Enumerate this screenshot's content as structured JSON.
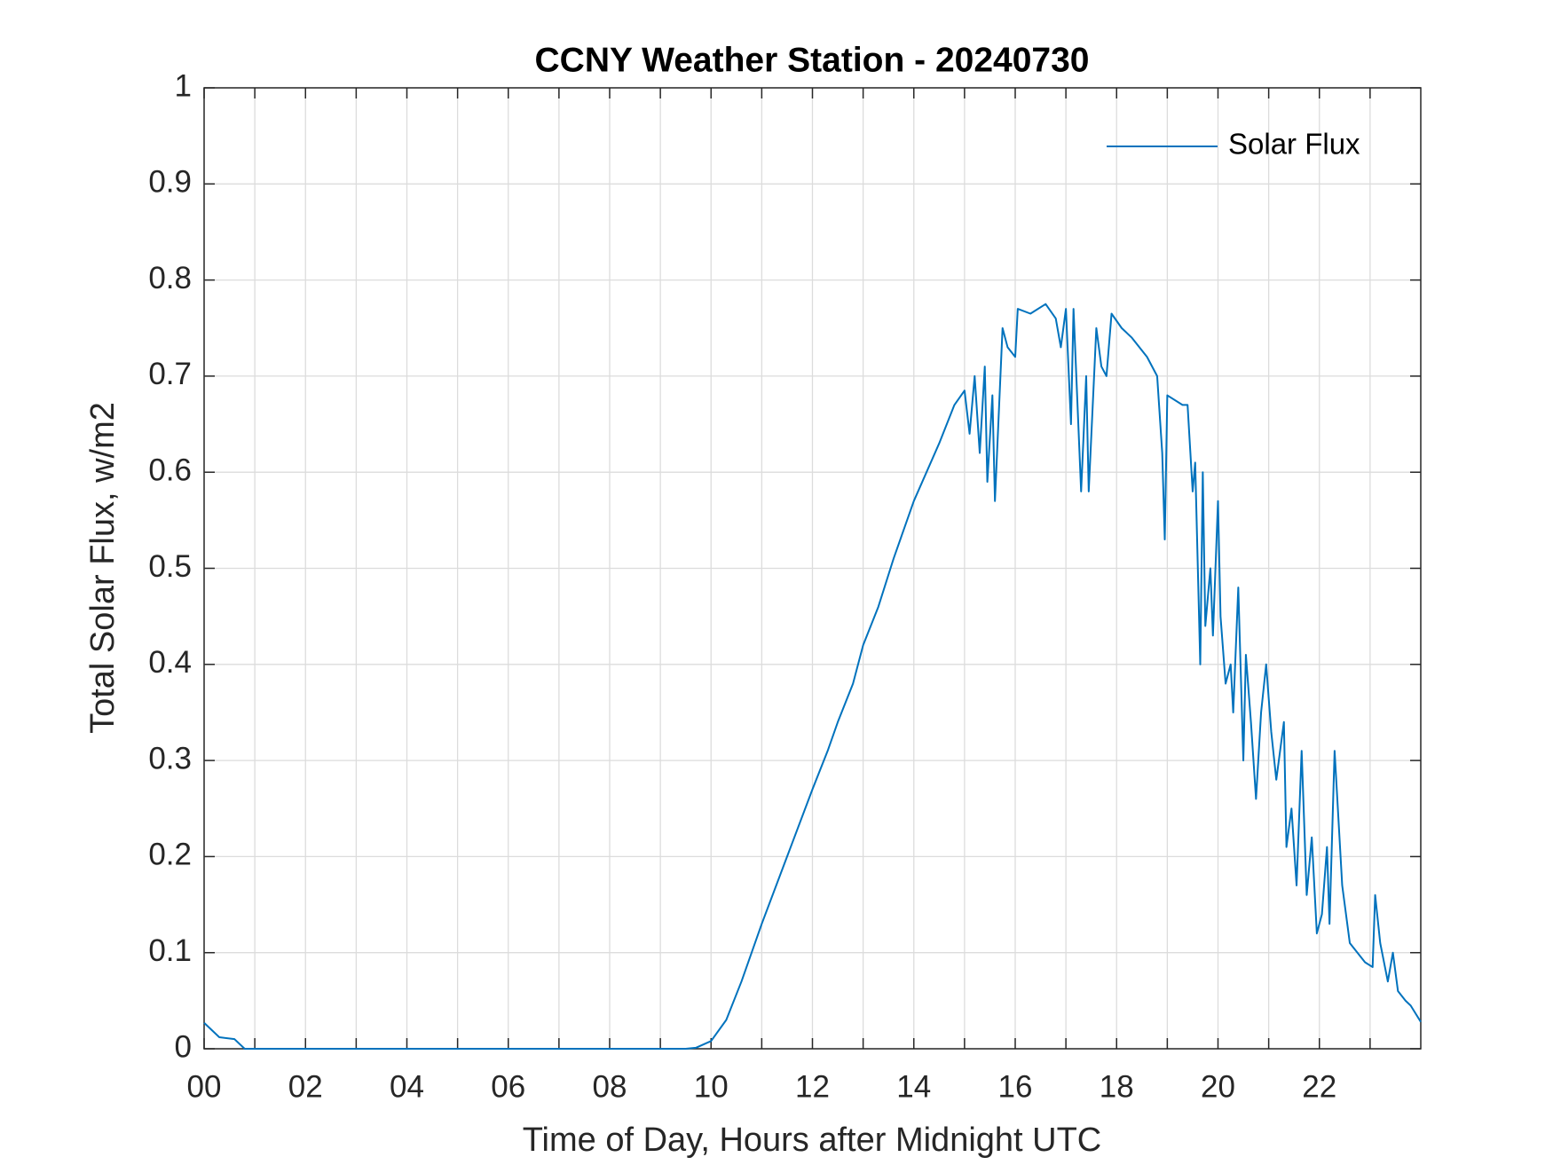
{
  "chart_data": {
    "type": "line",
    "title": "CCNY Weather Station - 20240730",
    "x_label": "Time of Day, Hours after Midnight UTC",
    "y_label": "Total Solar Flux, w/m2",
    "xlim": [
      0,
      24
    ],
    "ylim": [
      0,
      1
    ],
    "xticks": [
      {
        "value": 0,
        "label": "00"
      },
      {
        "value": 2,
        "label": "02"
      },
      {
        "value": 4,
        "label": "04"
      },
      {
        "value": 6,
        "label": "06"
      },
      {
        "value": 8,
        "label": "08"
      },
      10,
      12,
      14,
      16,
      18,
      20,
      22
    ],
    "xminorticks": [
      1,
      3,
      5,
      7,
      9,
      11,
      13,
      15,
      17,
      19,
      21,
      23
    ],
    "yticks": [
      0,
      0.1,
      0.2,
      0.3,
      0.4,
      0.5,
      0.6,
      0.7,
      0.8,
      0.9,
      1
    ],
    "grid": true,
    "legend": "northeast",
    "x": [
      0,
      0.3,
      0.6,
      0.8,
      1,
      9.5,
      9.7,
      10,
      10.3,
      10.6,
      11,
      11.5,
      12,
      12.3,
      12.5,
      12.8,
      13,
      13.3,
      13.6,
      14,
      14.5,
      14.8,
      15.0,
      15.1,
      15.2,
      15.3,
      15.4,
      15.45,
      15.55,
      15.6,
      15.75,
      15.85,
      16.0,
      16.05,
      16.3,
      16.6,
      16.8,
      16.9,
      17.0,
      17.1,
      17.15,
      17.3,
      17.4,
      17.45,
      17.6,
      17.7,
      17.8,
      17.9,
      18.1,
      18.3,
      18.6,
      18.8,
      18.9,
      18.95,
      19.0,
      19.3,
      19.4,
      19.5,
      19.55,
      19.65,
      19.7,
      19.75,
      19.85,
      19.9,
      20.0,
      20.05,
      20.15,
      20.25,
      20.3,
      20.4,
      20.5,
      20.55,
      20.65,
      20.75,
      20.85,
      20.95,
      21.05,
      21.15,
      21.3,
      21.35,
      21.45,
      21.55,
      21.65,
      21.75,
      21.85,
      21.95,
      22.05,
      22.15,
      22.2,
      22.3,
      22.45,
      22.6,
      22.9,
      23.05,
      23.1,
      23.2,
      23.35,
      23.45,
      23.55,
      23.7,
      23.8,
      24.0
    ],
    "series": [
      {
        "name": "Solar Flux",
        "color": "#0072bd",
        "values": [
          0.027,
          0.012,
          0.01,
          0,
          0,
          0,
          0.001,
          0.008,
          0.03,
          0.07,
          0.13,
          0.2,
          0.27,
          0.31,
          0.34,
          0.38,
          0.42,
          0.46,
          0.51,
          0.57,
          0.63,
          0.67,
          0.685,
          0.64,
          0.7,
          0.62,
          0.71,
          0.59,
          0.68,
          0.57,
          0.75,
          0.73,
          0.72,
          0.77,
          0.765,
          0.775,
          0.76,
          0.73,
          0.77,
          0.65,
          0.77,
          0.58,
          0.7,
          0.58,
          0.75,
          0.71,
          0.7,
          0.765,
          0.75,
          0.74,
          0.72,
          0.7,
          0.62,
          0.53,
          0.68,
          0.67,
          0.67,
          0.58,
          0.61,
          0.4,
          0.6,
          0.44,
          0.5,
          0.43,
          0.57,
          0.45,
          0.38,
          0.4,
          0.35,
          0.48,
          0.3,
          0.41,
          0.34,
          0.26,
          0.35,
          0.4,
          0.33,
          0.28,
          0.34,
          0.21,
          0.25,
          0.17,
          0.31,
          0.16,
          0.22,
          0.12,
          0.14,
          0.21,
          0.13,
          0.31,
          0.17,
          0.11,
          0.09,
          0.085,
          0.16,
          0.11,
          0.07,
          0.1,
          0.06,
          0.05,
          0.045,
          0.028
        ]
      }
    ]
  }
}
